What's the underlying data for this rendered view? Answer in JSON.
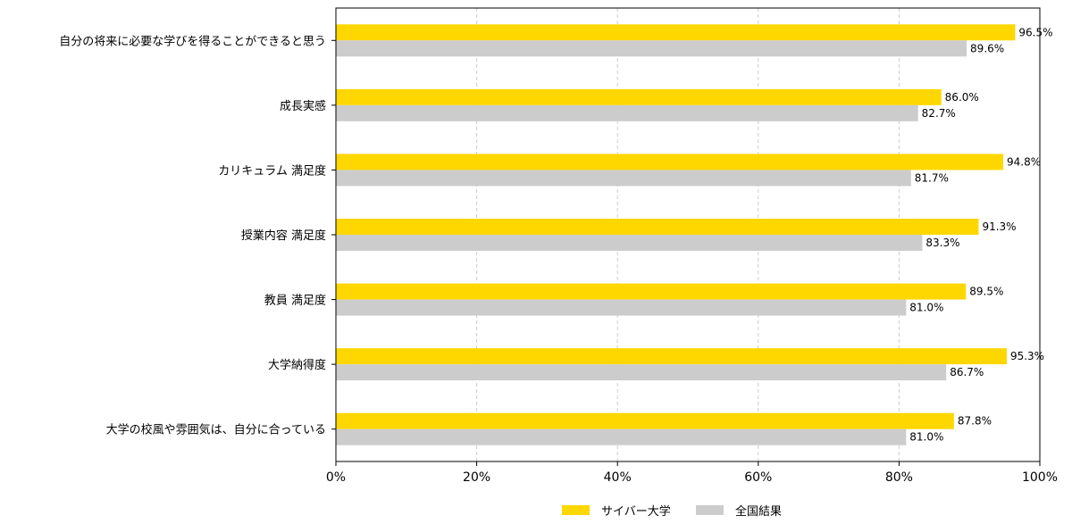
{
  "chart_data": {
    "type": "bar",
    "orientation": "horizontal",
    "categories": [
      "自分の将来に必要な学びを得ることができると思う",
      "成長実感",
      "カリキュラム 満足度",
      "授業内容 満足度",
      "教員 満足度",
      "大学納得度",
      "大学の校風や雰囲気は、自分に合っている"
    ],
    "series": [
      {
        "name": "サイバー大学",
        "color": "#FFD700",
        "values": [
          96.5,
          86.0,
          94.8,
          91.3,
          89.5,
          95.3,
          87.8
        ],
        "value_labels": [
          "96.5%",
          "86.0%",
          "94.8%",
          "91.3%",
          "89.5%",
          "95.3%",
          "87.8%"
        ]
      },
      {
        "name": "全国結果",
        "color": "#CCCCCC",
        "values": [
          89.6,
          82.7,
          81.7,
          83.3,
          81.0,
          86.7,
          81.0
        ],
        "value_labels": [
          "89.6%",
          "82.7%",
          "81.7%",
          "83.3%",
          "81.0%",
          "86.7%",
          "81.0%"
        ]
      }
    ],
    "xlim": [
      0,
      100
    ],
    "x_ticks": [
      0,
      20,
      40,
      60,
      80,
      100
    ],
    "x_tick_labels": [
      "0%",
      "20%",
      "40%",
      "60%",
      "80%",
      "100%"
    ],
    "grid": "vertical dashed",
    "legend_position": "bottom-center"
  }
}
